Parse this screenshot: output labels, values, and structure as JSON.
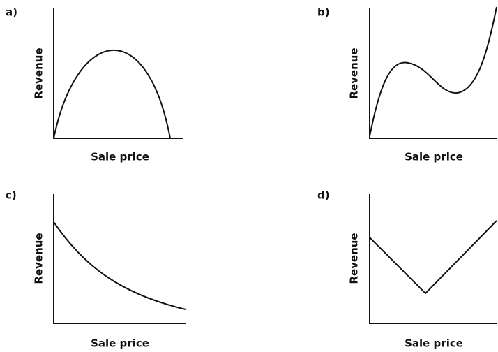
{
  "panels": [
    {
      "label": "a)",
      "x_label": "Sale price",
      "y_label": "Revenue"
    },
    {
      "label": "b)",
      "x_label": "Sale price",
      "y_label": "Revenue"
    },
    {
      "label": "c)",
      "x_label": "Sale price",
      "y_label": "Revenue"
    },
    {
      "label": "d)",
      "x_label": "Sale price",
      "y_label": "Revenue"
    }
  ]
}
